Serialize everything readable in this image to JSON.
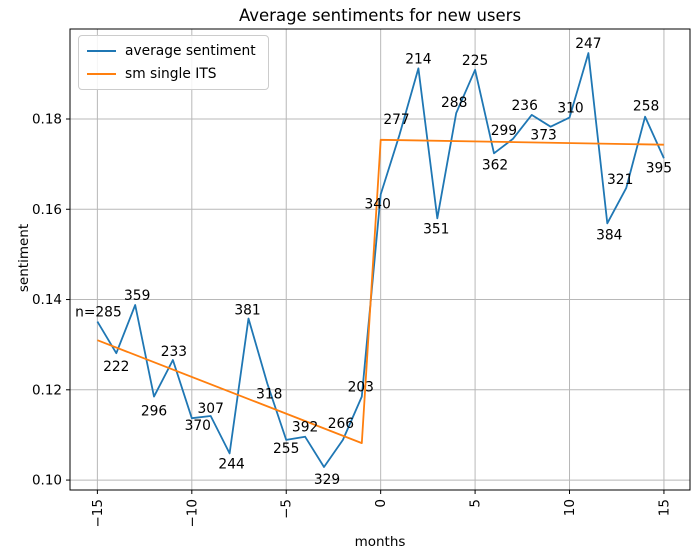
{
  "figure": {
    "background": "#ffffff",
    "frame_color": "#000000",
    "grid_color": "#b8b8b8",
    "text_color": "#000000"
  },
  "chart_data": {
    "type": "line",
    "title": "Average sentiments for new users",
    "xlabel": "months",
    "ylabel": "sentiment",
    "grid": true,
    "legend_position": "upper left",
    "xlim": [
      -16.45,
      16.38
    ],
    "ylim": [
      0.0978,
      0.19994
    ],
    "xtick_values": [
      -15,
      -10,
      -5,
      0,
      5,
      10,
      15
    ],
    "xtick_labels": [
      "−15",
      "−10",
      "−5",
      "0",
      "5",
      "10",
      "15"
    ],
    "ytick_values": [
      0.1,
      0.12,
      0.14,
      0.16,
      0.18
    ],
    "ytick_labels": [
      "0.10",
      "0.12",
      "0.14",
      "0.16",
      "0.18"
    ],
    "series": [
      {
        "name": "average sentiment",
        "color": "#1f77b4",
        "x": [
          -15,
          -14,
          -13,
          -12,
          -11,
          -10,
          -9,
          -8,
          -7,
          -6,
          -5,
          -4,
          -3,
          -2,
          -1,
          0,
          1,
          2,
          3,
          4,
          5,
          6,
          7,
          8,
          9,
          10,
          11,
          12,
          13,
          14,
          15
        ],
        "y": [
          0.1351,
          0.1281,
          0.1388,
          0.1185,
          0.1266,
          0.1137,
          0.1142,
          0.1059,
          0.1358,
          0.1214,
          0.1089,
          0.1096,
          0.1029,
          0.1089,
          0.1185,
          0.1633,
          0.1765,
          0.1912,
          0.158,
          0.1813,
          0.1909,
          0.1724,
          0.1756,
          0.1809,
          0.1783,
          0.1803,
          0.1946,
          0.1569,
          0.1647,
          0.1805,
          0.1713
        ],
        "point_labels": [
          "n=285",
          "222",
          "359",
          "296",
          "233",
          "370",
          "307",
          "244",
          "381",
          "318",
          "255",
          "392",
          "329",
          "266",
          "203",
          "340",
          "277",
          "214",
          "351",
          "288",
          "225",
          "362",
          "299",
          "236",
          "373",
          "310",
          "247",
          "384",
          "321",
          "258",
          "395"
        ],
        "label_offsets": [
          [
            1,
            -5
          ],
          [
            0,
            18
          ],
          [
            2,
            -5
          ],
          [
            0,
            19
          ],
          [
            1,
            -4
          ],
          [
            6,
            12
          ],
          [
            0,
            -3
          ],
          [
            2,
            15
          ],
          [
            -1,
            -4
          ],
          [
            2,
            15
          ],
          [
            0,
            13
          ],
          [
            0,
            -5
          ],
          [
            3,
            17
          ],
          [
            -2,
            -12
          ],
          [
            -1,
            -5
          ],
          [
            -3,
            14
          ],
          [
            -3,
            -11
          ],
          [
            0,
            -5
          ],
          [
            -1,
            15
          ],
          [
            -2,
            -6
          ],
          [
            0,
            -5
          ],
          [
            1,
            16
          ],
          [
            -9,
            -4
          ],
          [
            -7,
            -5
          ],
          [
            -7,
            13
          ],
          [
            1,
            -5
          ],
          [
            0,
            -5
          ],
          [
            2,
            16
          ],
          [
            -6,
            -4
          ],
          [
            1,
            -6
          ],
          [
            -5,
            14
          ]
        ]
      },
      {
        "name": "sm single ITS",
        "color": "#ff7f0e",
        "x": [
          -15,
          -1,
          0,
          15
        ],
        "y": [
          0.131,
          0.1082,
          0.1754,
          0.1743
        ],
        "point_labels": [],
        "label_offsets": []
      }
    ]
  }
}
